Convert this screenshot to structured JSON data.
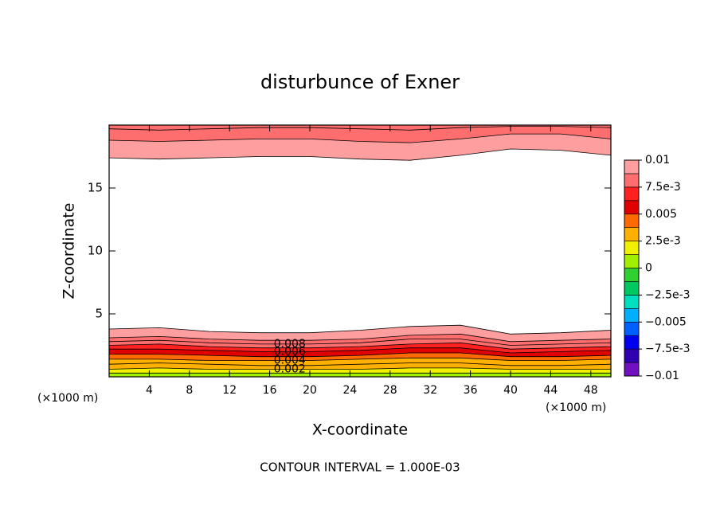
{
  "chart_data": {
    "type": "contour",
    "title": "disturbunce of Exner",
    "x_label": "X-coordinate",
    "y_label": "Z-coordinate",
    "x_unit": "(×1000 m)",
    "y_unit": "(×1000 m)",
    "footer": "CONTOUR INTERVAL = 1.000E-03",
    "xlim": [
      0,
      50
    ],
    "ylim": [
      0,
      20
    ],
    "xticks": [
      4,
      8,
      12,
      16,
      20,
      24,
      28,
      32,
      36,
      40,
      44,
      48
    ],
    "yticks": [
      5,
      10,
      15
    ],
    "contours": {
      "x": [
        0,
        5,
        10,
        15,
        20,
        25,
        30,
        35,
        40,
        45,
        50
      ],
      "label_x": 18,
      "lower": [
        {
          "level": 0.001,
          "z": [
            0.3,
            0.3,
            0.3,
            0.3,
            0.3,
            0.3,
            0.3,
            0.3,
            0.3,
            0.3,
            0.3
          ]
        },
        {
          "level": 0.002,
          "labeled": true,
          "z": [
            0.6,
            0.7,
            0.6,
            0.6,
            0.6,
            0.6,
            0.7,
            0.7,
            0.6,
            0.6,
            0.6
          ]
        },
        {
          "level": 0.003,
          "z": [
            1.0,
            1.1,
            1.0,
            0.9,
            0.9,
            1.0,
            1.1,
            1.1,
            0.9,
            0.9,
            1.0
          ]
        },
        {
          "level": 0.004,
          "labeled": true,
          "z": [
            1.4,
            1.4,
            1.3,
            1.3,
            1.3,
            1.4,
            1.5,
            1.5,
            1.3,
            1.3,
            1.4
          ]
        },
        {
          "level": 0.005,
          "z": [
            1.8,
            1.8,
            1.7,
            1.6,
            1.6,
            1.7,
            1.9,
            1.9,
            1.6,
            1.6,
            1.7
          ]
        },
        {
          "level": 0.006,
          "labeled": true,
          "z": [
            2.2,
            2.2,
            2.1,
            2.0,
            2.0,
            2.1,
            2.3,
            2.3,
            1.9,
            2.0,
            2.1
          ]
        },
        {
          "level": 0.007,
          "z": [
            2.5,
            2.6,
            2.4,
            2.3,
            2.3,
            2.4,
            2.6,
            2.7,
            2.2,
            2.3,
            2.4
          ]
        },
        {
          "level": 0.008,
          "labeled": true,
          "z": [
            2.8,
            2.9,
            2.7,
            2.6,
            2.6,
            2.7,
            3.0,
            3.0,
            2.5,
            2.6,
            2.7
          ]
        },
        {
          "level": 0.009,
          "z": [
            3.1,
            3.2,
            3.0,
            2.9,
            2.9,
            3.0,
            3.3,
            3.4,
            2.8,
            2.9,
            3.0
          ]
        },
        {
          "level": 0.01,
          "z": [
            3.8,
            3.9,
            3.6,
            3.5,
            3.5,
            3.7,
            4.0,
            4.1,
            3.4,
            3.5,
            3.7
          ]
        }
      ],
      "upper": [
        {
          "level": 0.01,
          "z": [
            17.4,
            17.3,
            17.4,
            17.5,
            17.5,
            17.3,
            17.2,
            17.6,
            18.1,
            18.0,
            17.6
          ]
        },
        {
          "level": 0.009,
          "z": [
            18.8,
            18.7,
            18.8,
            18.9,
            18.9,
            18.7,
            18.6,
            18.9,
            19.3,
            19.3,
            18.9
          ]
        },
        {
          "level": 0.008,
          "z": [
            19.7,
            19.6,
            19.7,
            19.8,
            19.8,
            19.7,
            19.6,
            19.8,
            19.9,
            19.9,
            19.8
          ]
        }
      ]
    },
    "colorbar": {
      "lim": [
        -0.01,
        0.01
      ],
      "colors": [
        "#7010c0",
        "#3000b0",
        "#0000f0",
        "#0060ff",
        "#00b0ff",
        "#00e0c0",
        "#00c860",
        "#30d030",
        "#a0f000",
        "#f0f000",
        "#ffb000",
        "#ff6a00",
        "#e00000",
        "#ff2020",
        "#ff6e6e",
        "#ff9e9e"
      ],
      "ticks": [
        0.01,
        {
          "value": 0.0075,
          "label": "7.5e-3"
        },
        0.005,
        {
          "value": 0.0025,
          "label": "2.5e-3"
        },
        0,
        {
          "value": -0.0025,
          "label": "−2.5e-3"
        },
        {
          "value": -0.005,
          "label": "−0.005"
        },
        {
          "value": -0.0075,
          "label": "−7.5e-3"
        },
        {
          "value": -0.01,
          "label": "−0.01"
        }
      ]
    }
  }
}
